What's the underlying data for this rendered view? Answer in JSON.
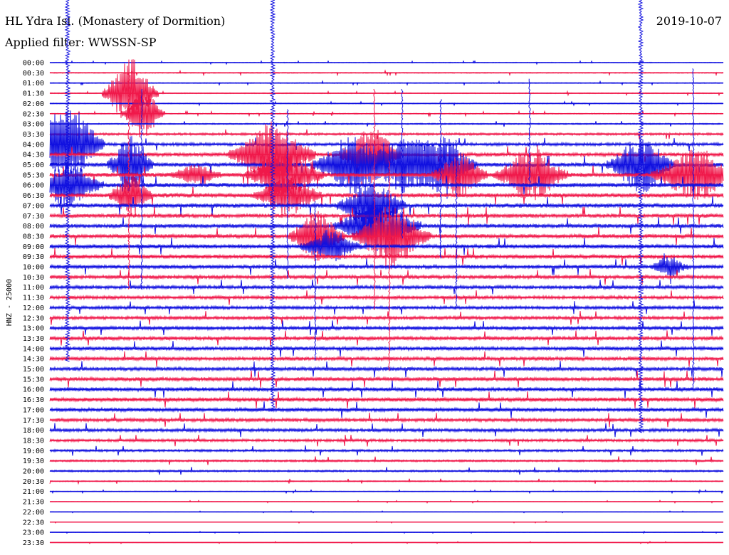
{
  "header": {
    "station": "HL Ydra Isl. (Monastery of Dormition)",
    "filter": "Applied filter: WWSSN-SP",
    "date": "2019-10-07"
  },
  "chart_data": {
    "type": "line",
    "ylabel": "HNZ - 25000",
    "colors": [
      "#1010e0",
      "#f0184a"
    ],
    "row_labels": [
      "00:00",
      "00:30",
      "01:00",
      "01:30",
      "02:00",
      "02:30",
      "03:00",
      "03:30",
      "04:00",
      "04:30",
      "05:00",
      "05:30",
      "06:00",
      "06:30",
      "07:00",
      "07:30",
      "08:00",
      "08:30",
      "09:00",
      "09:30",
      "10:00",
      "10:30",
      "11:00",
      "11:30",
      "12:00",
      "12:30",
      "13:00",
      "13:30",
      "14:00",
      "14:30",
      "15:00",
      "15:30",
      "16:00",
      "16:30",
      "17:00",
      "17:30",
      "18:00",
      "18:30",
      "19:00",
      "19:30",
      "20:00",
      "20:30",
      "21:00",
      "21:30",
      "22:00",
      "22:30",
      "23:00",
      "23:30"
    ],
    "row_noise": [
      0.5,
      0.7,
      0.6,
      0.6,
      0.6,
      0.7,
      0.9,
      1.6,
      2.1,
      2.6,
      2.8,
      3.0,
      3.0,
      3.0,
      3.0,
      2.8,
      2.8,
      2.8,
      2.8,
      2.7,
      2.6,
      2.5,
      2.4,
      2.3,
      2.2,
      2.2,
      2.4,
      2.5,
      2.6,
      2.6,
      2.6,
      2.7,
      2.8,
      2.8,
      2.6,
      2.4,
      2.2,
      1.9,
      1.6,
      1.4,
      1.3,
      0.8,
      0.5,
      0.4,
      0.3,
      0.3,
      0.3,
      0.3
    ],
    "bursts": [
      {
        "row": 8,
        "x": 95,
        "amp": 55,
        "width": 24
      },
      {
        "row": 12,
        "x": 97,
        "amp": 30,
        "width": 22
      },
      {
        "row": 3,
        "x": 183,
        "amp": 50,
        "width": 18
      },
      {
        "row": 10,
        "x": 183,
        "amp": 40,
        "width": 15
      },
      {
        "row": 13,
        "x": 183,
        "amp": 30,
        "width": 14
      },
      {
        "row": 5,
        "x": 201,
        "amp": 35,
        "width": 14
      },
      {
        "row": 11,
        "x": 275,
        "amp": 14,
        "width": 16
      },
      {
        "row": 9,
        "x": 382,
        "amp": 45,
        "width": 28
      },
      {
        "row": 11,
        "x": 400,
        "amp": 35,
        "width": 25
      },
      {
        "row": 13,
        "x": 404,
        "amp": 28,
        "width": 22
      },
      {
        "row": 17,
        "x": 445,
        "amp": 35,
        "width": 18
      },
      {
        "row": 18,
        "x": 465,
        "amp": 22,
        "width": 20
      },
      {
        "row": 10,
        "x": 495,
        "amp": 40,
        "width": 26
      },
      {
        "row": 9,
        "x": 520,
        "amp": 40,
        "width": 20
      },
      {
        "row": 14,
        "x": 522,
        "amp": 35,
        "width": 22
      },
      {
        "row": 16,
        "x": 530,
        "amp": 38,
        "width": 28
      },
      {
        "row": 17,
        "x": 550,
        "amp": 45,
        "width": 25
      },
      {
        "row": 10,
        "x": 567,
        "amp": 38,
        "width": 22
      },
      {
        "row": 10,
        "x": 621,
        "amp": 38,
        "width": 22
      },
      {
        "row": 11,
        "x": 646,
        "amp": 30,
        "width": 18
      },
      {
        "row": 11,
        "x": 746,
        "amp": 35,
        "width": 24
      },
      {
        "row": 10,
        "x": 900,
        "amp": 40,
        "width": 22
      },
      {
        "row": 11,
        "x": 976,
        "amp": 35,
        "width": 28
      },
      {
        "row": 20,
        "x": 940,
        "amp": 14,
        "width": 12
      }
    ],
    "spikes": [
      {
        "x": 383,
        "row_top": 0,
        "row_bottom": 34,
        "color": "#1010e0"
      },
      {
        "x": 406,
        "row_top": 5,
        "row_bottom": 21,
        "color": "#1010e0"
      },
      {
        "x": 445,
        "row_top": 14,
        "row_bottom": 29,
        "color": "#1010e0"
      },
      {
        "x": 528,
        "row_top": 3,
        "row_bottom": 24,
        "color": "#f0184a"
      },
      {
        "x": 549,
        "row_top": 10,
        "row_bottom": 30,
        "color": "#f0184a"
      },
      {
        "x": 900,
        "row_top": 0,
        "row_bottom": 36,
        "color": "#1010e0"
      },
      {
        "x": 976,
        "row_top": 1,
        "row_bottom": 32,
        "color": "#1010e0"
      },
      {
        "x": 95,
        "row_top": 0,
        "row_bottom": 29,
        "color": "#1010e0"
      },
      {
        "x": 183,
        "row_top": 1,
        "row_bottom": 22,
        "color": "#f0184a"
      },
      {
        "x": 201,
        "row_top": 3,
        "row_bottom": 22,
        "color": "#1010e0"
      },
      {
        "x": 746,
        "row_top": 2,
        "row_bottom": 12,
        "color": "#1010e0"
      },
      {
        "x": 621,
        "row_top": 4,
        "row_bottom": 19,
        "color": "#1010e0"
      },
      {
        "x": 643,
        "row_top": 8,
        "row_bottom": 24,
        "color": "#1010e0"
      },
      {
        "x": 567,
        "row_top": 3,
        "row_bottom": 17,
        "color": "#1010e0"
      }
    ]
  }
}
